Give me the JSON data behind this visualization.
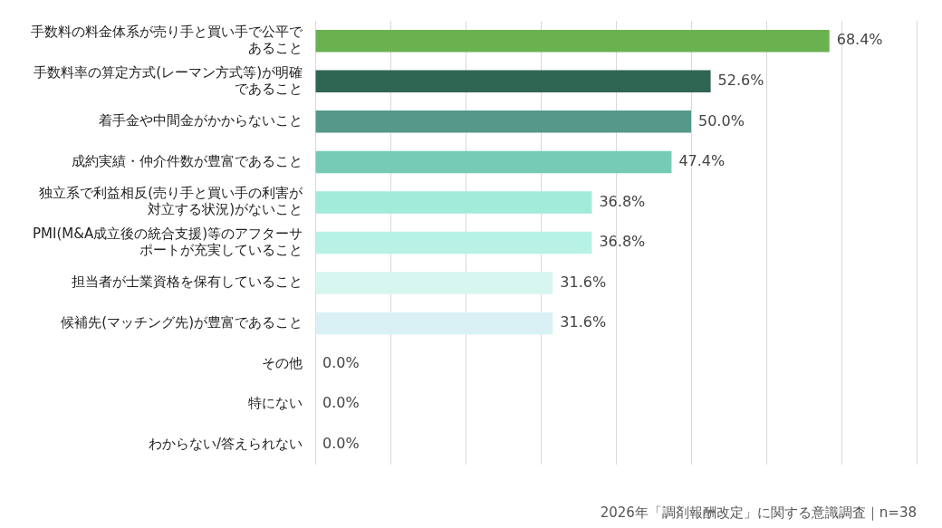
{
  "chart_data": {
    "type": "bar",
    "orientation": "horizontal",
    "categories": [
      "手数料の料金体系が売り手と買い手で公平であること",
      "手数料率の算定方式(レーマン方式等)が明確であること",
      "着手金や中間金がかからないこと",
      "成約実績・仲介件数が豊富であること",
      "独立系で利益相反(売り手と買い手の利害が対立する状況)がないこと",
      "PMI(M&A成立後の統合支援)等のアフターサポートが充実していること",
      "担当者が士業資格を保有していること",
      "候補先(マッチング先)が豊富であること",
      "その他",
      "特にない",
      "わからない/答えられない"
    ],
    "values": [
      68.4,
      52.6,
      50.0,
      47.4,
      36.8,
      36.8,
      31.6,
      31.6,
      0.0,
      0.0,
      0.0
    ],
    "value_labels": [
      "68.4%",
      "52.6%",
      "50.0%",
      "47.4%",
      "36.8%",
      "36.8%",
      "31.6%",
      "31.6%",
      "0.0%",
      "0.0%",
      "0.0%"
    ],
    "colors": [
      "#6ab150",
      "#2f6553",
      "#55998a",
      "#76cbb6",
      "#a2ebdb",
      "#b8f2e6",
      "#d8f6f0",
      "#d9f1f5",
      "#cccccc",
      "#cccccc",
      "#cccccc"
    ],
    "xlim": [
      0,
      80
    ],
    "xticks": [
      0,
      10,
      20,
      30,
      40,
      50,
      60,
      70,
      80
    ],
    "grid": "x",
    "tick_labels": "y",
    "legend": false,
    "annotations": [
      "2026年「調剤報酬改定」に関する意識調査｜n=38"
    ]
  }
}
